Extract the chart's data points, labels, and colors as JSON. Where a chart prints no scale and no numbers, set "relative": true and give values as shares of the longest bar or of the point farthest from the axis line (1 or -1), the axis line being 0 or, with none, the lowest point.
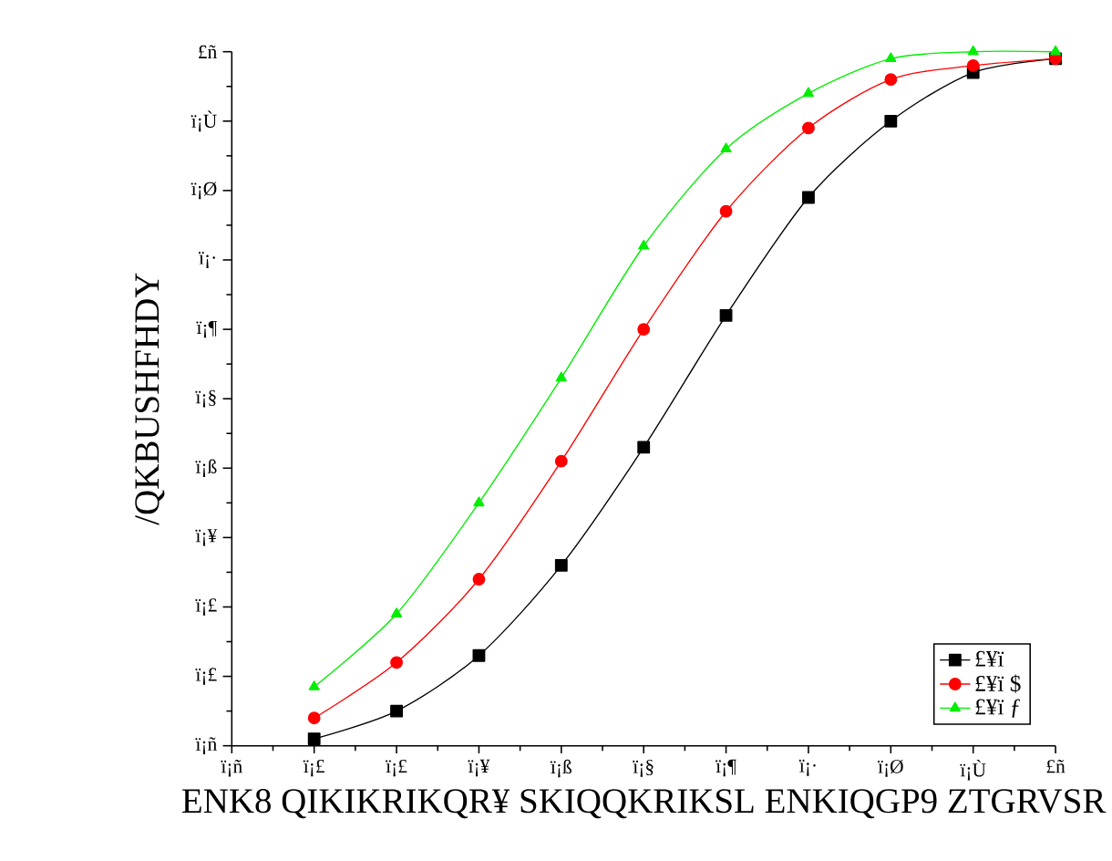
{
  "chart_data": {
    "type": "line",
    "xlabel": "ENK8 QIKIKRIKQR¥ SKIQQKRIKSL ENKIQGP9 ZTGRVSR",
    "ylabel": "/QKBUSHFHDY",
    "categories": [
      "ï¡ñ",
      "ï¡£",
      "ï¡£",
      "ï¡¥",
      "ï¡ß",
      "ï¡§",
      "ï¡¶",
      "ï¡·",
      "ï¡Ø",
      "ï¡Ù",
      "£ñ"
    ],
    "relative": true,
    "annotations": [
      "ï¡ñ",
      "ï¡£",
      "ï¡£",
      "ï¡¥",
      "ï¡ß",
      "ï¡§",
      "ï¡¶",
      "ï¡·",
      "ï¡Ø",
      "ï¡Ù",
      "£ñ"
    ],
    "legend": "bottom right",
    "series": [
      {
        "name": "£¥ï",
        "color": "#000000",
        "marker": "square",
        "values": [
          null,
          0.01,
          0.05,
          0.13,
          0.26,
          0.43,
          0.62,
          0.79,
          0.9,
          0.97,
          0.99
        ]
      },
      {
        "name": "£¥ï $",
        "color": "#ff0000",
        "marker": "circle",
        "values": [
          null,
          0.04,
          0.12,
          0.24,
          0.41,
          0.6,
          0.77,
          0.89,
          0.96,
          0.98,
          0.99
        ]
      },
      {
        "name": "£¥ï ƒ",
        "color": "#00ee00",
        "marker": "triangle",
        "values": [
          null,
          0.085,
          0.19,
          0.35,
          0.53,
          0.72,
          0.86,
          0.94,
          0.99,
          1.0,
          1.0
        ]
      }
    ]
  }
}
